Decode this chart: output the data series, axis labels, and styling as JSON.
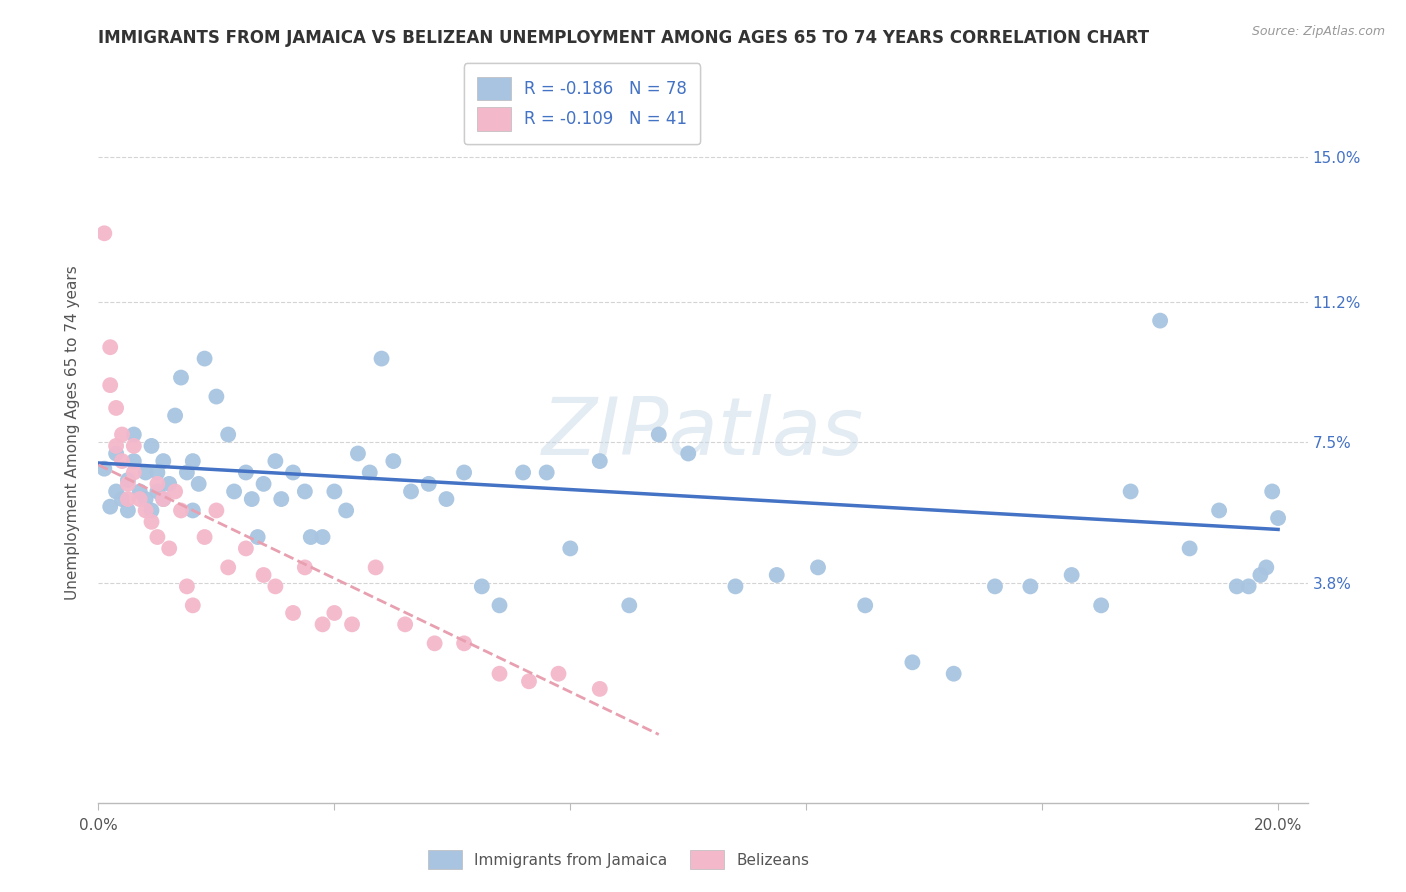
{
  "title": "IMMIGRANTS FROM JAMAICA VS BELIZEAN UNEMPLOYMENT AMONG AGES 65 TO 74 YEARS CORRELATION CHART",
  "source": "Source: ZipAtlas.com",
  "ylabel": "Unemployment Among Ages 65 to 74 years",
  "xlim": [
    0.0,
    0.205
  ],
  "ylim": [
    -0.02,
    0.175
  ],
  "xtick_positions": [
    0.0,
    0.04,
    0.08,
    0.12,
    0.16,
    0.2
  ],
  "xticklabels": [
    "0.0%",
    "",
    "",
    "",
    "",
    "20.0%"
  ],
  "ytick_positions": [
    0.038,
    0.075,
    0.112,
    0.15
  ],
  "ytick_labels": [
    "3.8%",
    "7.5%",
    "11.2%",
    "15.0%"
  ],
  "watermark": "ZIPatlas",
  "blue_scatter_color": "#a8c4e0",
  "pink_scatter_color": "#f4b8cb",
  "blue_line_color": "#4472c4",
  "pink_line_color": "#e8a0b0",
  "legend_text_color": "#4472c4",
  "legend_label_color": "#333333",
  "title_color": "#333333",
  "axis_label_color": "#555555",
  "grid_color": "#d0d0d0",
  "blue_points_x": [
    0.001,
    0.002,
    0.003,
    0.003,
    0.004,
    0.005,
    0.005,
    0.006,
    0.006,
    0.007,
    0.008,
    0.008,
    0.009,
    0.009,
    0.01,
    0.01,
    0.011,
    0.011,
    0.012,
    0.013,
    0.014,
    0.015,
    0.016,
    0.016,
    0.017,
    0.018,
    0.02,
    0.022,
    0.023,
    0.025,
    0.026,
    0.027,
    0.028,
    0.03,
    0.031,
    0.033,
    0.035,
    0.036,
    0.038,
    0.04,
    0.042,
    0.044,
    0.046,
    0.048,
    0.05,
    0.053,
    0.056,
    0.059,
    0.062,
    0.065,
    0.068,
    0.072,
    0.076,
    0.08,
    0.085,
    0.09,
    0.095,
    0.1,
    0.108,
    0.115,
    0.122,
    0.13,
    0.138,
    0.145,
    0.152,
    0.158,
    0.165,
    0.17,
    0.175,
    0.18,
    0.185,
    0.19,
    0.193,
    0.195,
    0.197,
    0.198,
    0.199,
    0.2
  ],
  "blue_points_y": [
    0.068,
    0.058,
    0.062,
    0.072,
    0.06,
    0.057,
    0.065,
    0.07,
    0.077,
    0.062,
    0.06,
    0.067,
    0.074,
    0.057,
    0.062,
    0.067,
    0.07,
    0.06,
    0.064,
    0.082,
    0.092,
    0.067,
    0.057,
    0.07,
    0.064,
    0.097,
    0.087,
    0.077,
    0.062,
    0.067,
    0.06,
    0.05,
    0.064,
    0.07,
    0.06,
    0.067,
    0.062,
    0.05,
    0.05,
    0.062,
    0.057,
    0.072,
    0.067,
    0.097,
    0.07,
    0.062,
    0.064,
    0.06,
    0.067,
    0.037,
    0.032,
    0.067,
    0.067,
    0.047,
    0.07,
    0.032,
    0.077,
    0.072,
    0.037,
    0.04,
    0.042,
    0.032,
    0.017,
    0.014,
    0.037,
    0.037,
    0.04,
    0.032,
    0.062,
    0.107,
    0.047,
    0.057,
    0.037,
    0.037,
    0.04,
    0.042,
    0.062,
    0.055
  ],
  "pink_points_x": [
    0.001,
    0.002,
    0.002,
    0.003,
    0.003,
    0.004,
    0.004,
    0.005,
    0.005,
    0.006,
    0.006,
    0.007,
    0.008,
    0.009,
    0.01,
    0.01,
    0.011,
    0.012,
    0.013,
    0.014,
    0.015,
    0.016,
    0.018,
    0.02,
    0.022,
    0.025,
    0.028,
    0.03,
    0.033,
    0.035,
    0.038,
    0.04,
    0.043,
    0.047,
    0.052,
    0.057,
    0.062,
    0.068,
    0.073,
    0.078,
    0.085
  ],
  "pink_points_y": [
    0.13,
    0.1,
    0.09,
    0.084,
    0.074,
    0.077,
    0.07,
    0.064,
    0.06,
    0.074,
    0.067,
    0.06,
    0.057,
    0.054,
    0.05,
    0.064,
    0.06,
    0.047,
    0.062,
    0.057,
    0.037,
    0.032,
    0.05,
    0.057,
    0.042,
    0.047,
    0.04,
    0.037,
    0.03,
    0.042,
    0.027,
    0.03,
    0.027,
    0.042,
    0.027,
    0.022,
    0.022,
    0.014,
    0.012,
    0.014,
    0.01
  ],
  "blue_trend_x": [
    0.0,
    0.2
  ],
  "blue_trend_y": [
    0.0695,
    0.052
  ],
  "pink_trend_x": [
    0.0,
    0.095
  ],
  "pink_trend_y": [
    0.069,
    -0.002
  ]
}
